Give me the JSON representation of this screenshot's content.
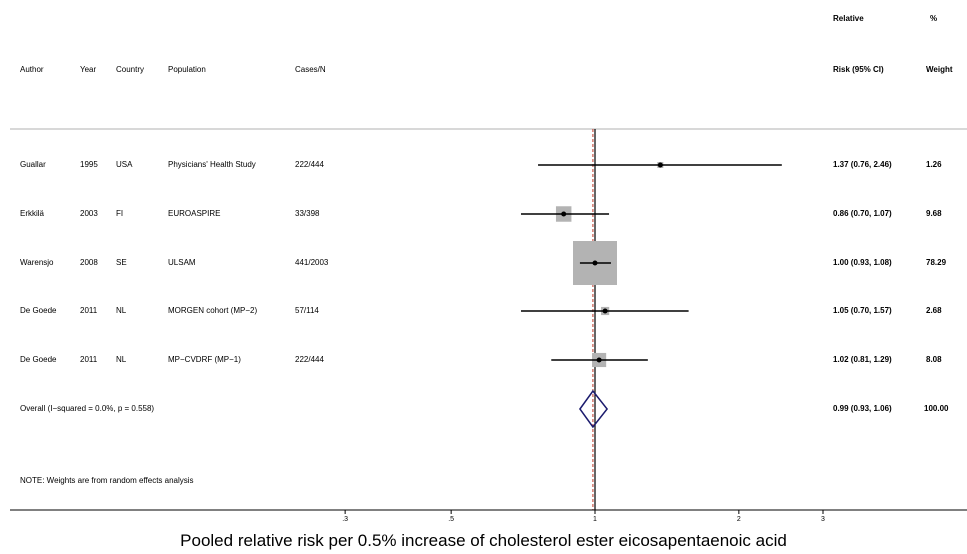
{
  "headers": {
    "author": "Author",
    "year": "Year",
    "country": "Country",
    "population": "Population",
    "cases": "Cases/N",
    "rr_line1": "Relative",
    "rr_line2": "Risk (95% CI)",
    "weight_line1": "%",
    "weight_line2": "Weight"
  },
  "overall_label": "Overall  (I−squared = 0.0%, p = 0.558)",
  "note": "NOTE: Weights are from random effects analysis",
  "chart_data": {
    "type": "forest",
    "scale": "log",
    "xlim": [
      0.2,
      4.3
    ],
    "xticks": [
      ".3",
      ".5",
      "1",
      "2",
      "3"
    ],
    "xlabel": "Pooled relative risk per 0.5% increase of cholesterol ester eicosapentaenoic acid",
    "reference_line": 1,
    "studies": [
      {
        "author": "Guallar",
        "year": "1995",
        "country": "USA",
        "population": "Physicians' Health Study",
        "cases": "222/444",
        "rr": 1.37,
        "lo": 0.76,
        "hi": 2.46,
        "rr_text": "1.37 (0.76, 2.46)",
        "weight": 1.26,
        "weight_text": "1.26"
      },
      {
        "author": "Erkkilä",
        "year": "2003",
        "country": "FI",
        "population": "EUROASPIRE",
        "cases": "33/398",
        "rr": 0.86,
        "lo": 0.7,
        "hi": 1.07,
        "rr_text": "0.86 (0.70, 1.07)",
        "weight": 9.68,
        "weight_text": "9.68"
      },
      {
        "author": "Warensjo",
        "year": "2008",
        "country": "SE",
        "population": "ULSAM",
        "cases": "441/2003",
        "rr": 1.0,
        "lo": 0.93,
        "hi": 1.08,
        "rr_text": "1.00 (0.93, 1.08)",
        "weight": 78.29,
        "weight_text": "78.29"
      },
      {
        "author": "De Goede",
        "year": "2011",
        "country": "NL",
        "population": "MORGEN cohort (MP−2)",
        "cases": "57/114",
        "rr": 1.05,
        "lo": 0.7,
        "hi": 1.57,
        "rr_text": "1.05 (0.70, 1.57)",
        "weight": 2.68,
        "weight_text": "2.68"
      },
      {
        "author": "De Goede",
        "year": "2011",
        "country": "NL",
        "population": "MP−CVDRF (MP−1)",
        "cases": "222/444",
        "rr": 1.02,
        "lo": 0.81,
        "hi": 1.29,
        "rr_text": "1.02 (0.81, 1.29)",
        "weight": 8.08,
        "weight_text": "8.08"
      }
    ],
    "overall": {
      "rr": 0.99,
      "lo": 0.93,
      "hi": 1.06,
      "rr_text": "0.99 (0.93, 1.06)",
      "weight_text": "100.00"
    },
    "colors": {
      "ci": "#000000",
      "box": "#b3b3b3",
      "diamond": "#1c1c6e",
      "overall_line": "#c0392b",
      "ref_line": "#000000",
      "rule": "#b0b0b0"
    }
  }
}
